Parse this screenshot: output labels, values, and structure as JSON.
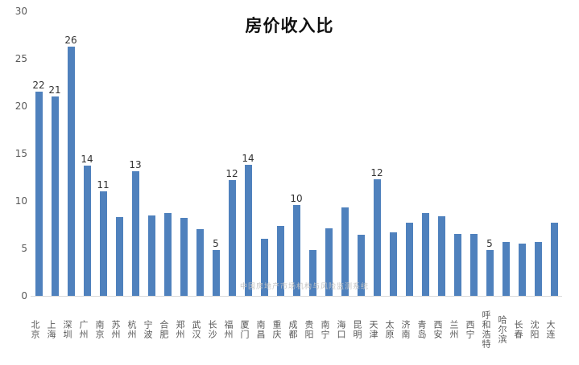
{
  "watermark": "中国房地产市场机构与风险监测系统",
  "chart_data": {
    "type": "bar",
    "title": "房价收入比",
    "bar_color": "#4F81BD",
    "ylim": [
      0,
      30
    ],
    "yticks": [
      0,
      5,
      10,
      15,
      20,
      25,
      30
    ],
    "grid": false,
    "legend": "none",
    "categories": [
      "北京",
      "上海",
      "深圳",
      "广州",
      "南京",
      "苏州",
      "杭州",
      "宁波",
      "合肥",
      "郑州",
      "武汉",
      "长沙",
      "福州",
      "厦门",
      "南昌",
      "重庆",
      "成都",
      "贵阳",
      "南宁",
      "海口",
      "昆明",
      "天津",
      "太原",
      "济南",
      "青岛",
      "西安",
      "兰州",
      "西宁",
      "呼和浩特",
      "哈尔滨",
      "长春",
      "沈阳",
      "大连"
    ],
    "values": [
      21.5,
      21.0,
      26.3,
      13.7,
      11.0,
      8.3,
      13.1,
      8.5,
      8.7,
      8.2,
      7.0,
      4.8,
      12.2,
      13.8,
      6.0,
      7.4,
      9.6,
      4.8,
      7.1,
      9.3,
      6.4,
      12.3,
      6.7,
      7.7,
      8.7,
      8.4,
      6.5,
      6.5,
      4.8,
      5.7,
      5.5,
      5.7,
      7.7
    ],
    "data_labels": [
      22,
      21,
      26,
      14,
      11,
      null,
      13,
      null,
      null,
      null,
      null,
      5,
      12,
      14,
      null,
      null,
      10,
      null,
      null,
      null,
      null,
      12,
      null,
      null,
      null,
      null,
      null,
      null,
      5,
      null,
      null,
      null,
      null
    ]
  }
}
